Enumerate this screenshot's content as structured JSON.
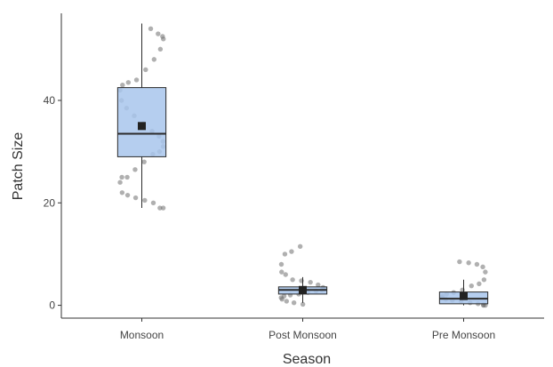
{
  "chart_data": {
    "type": "boxplot",
    "xlabel": "Season",
    "ylabel": "Patch Size",
    "categories": [
      "Monsoon",
      "Post Monsoon",
      "Pre Monsoon"
    ],
    "y_ticks": [
      0,
      20,
      40
    ],
    "ylim": [
      -2.5,
      57
    ],
    "grid": false,
    "legend": "none",
    "boxes": [
      {
        "category": "Monsoon",
        "min": 19,
        "q1": 29,
        "median": 33.5,
        "q3": 42.5,
        "max": 55,
        "mean": 35
      },
      {
        "category": "Post Monsoon",
        "min": 0.5,
        "q1": 2.2,
        "median": 3,
        "q3": 3.6,
        "max": 5.5,
        "mean": 3
      },
      {
        "category": "Pre Monsoon",
        "min": 0,
        "q1": 0.3,
        "median": 1.3,
        "q3": 2.6,
        "max": 5,
        "mean": 1.8
      }
    ],
    "points": [
      {
        "category": "Monsoon",
        "values": [
          54,
          53,
          52.5,
          52,
          50,
          48,
          46,
          44,
          43.5,
          43,
          42,
          40,
          38.5,
          37,
          35.5,
          34,
          33,
          32,
          31,
          30,
          29.5,
          28,
          26.5,
          25,
          25,
          24,
          22,
          21.5,
          21,
          20.5,
          20,
          19,
          19
        ]
      },
      {
        "category": "Post Monsoon",
        "values": [
          11.5,
          10.5,
          10,
          8,
          6.5,
          6,
          5,
          4.8,
          4.5,
          4,
          3.5,
          3.2,
          3,
          2.8,
          2.5,
          2.2,
          2,
          1.8,
          1.5,
          1.2,
          0.8,
          0.5,
          0.2
        ]
      },
      {
        "category": "Pre Monsoon",
        "values": [
          8.5,
          8.3,
          8,
          7.5,
          6.5,
          5,
          4.2,
          3.8,
          3,
          2.5,
          2.2,
          1.8,
          1.5,
          1.2,
          1,
          0.8,
          0.5,
          0.3,
          0.1,
          0,
          0
        ]
      }
    ],
    "colors": {
      "box_fill": "#a8c6ec",
      "box_stroke": "#2b2b2b",
      "points": "#6f6f6f",
      "mean_marker": "#222222",
      "axis": "#333333"
    }
  }
}
